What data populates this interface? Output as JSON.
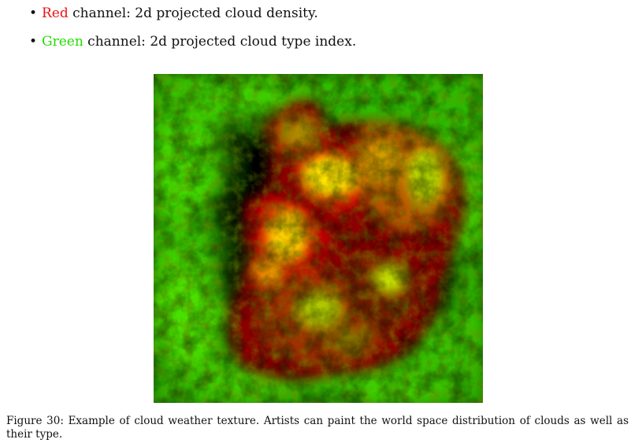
{
  "bullets": [
    {
      "channel": "Red",
      "text": " channel: 2d projected cloud density.",
      "color": "#ee1111"
    },
    {
      "channel": "Green",
      "text": " channel: 2d projected cloud type index.",
      "color": "#22dd00"
    }
  ],
  "figure": {
    "image_description": "cloud weather texture",
    "channel_colors": {
      "red": "#ff0000",
      "green": "#33ee00",
      "yellow": "#ffee00"
    }
  },
  "caption": {
    "text": "Figure 30: Example of cloud weather texture. Artists can paint the world space distribution of clouds as well as their type."
  }
}
